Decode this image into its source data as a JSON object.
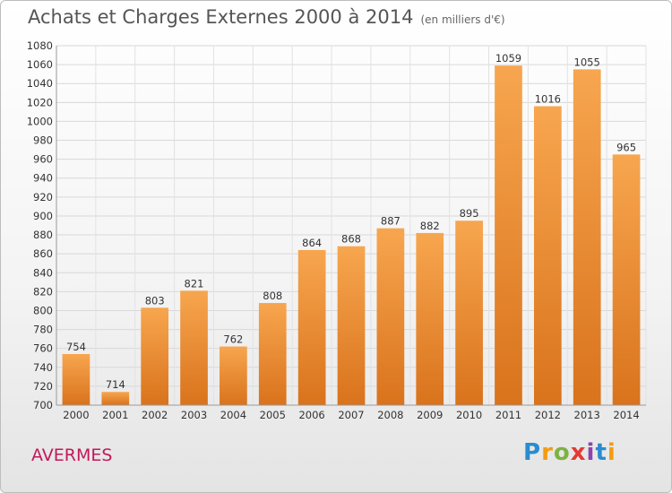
{
  "header": {
    "title": "Achats et Charges Externes 2000 à 2014",
    "unit": "(en milliers d'€)"
  },
  "footer": {
    "town": "AVERMES",
    "logo_letters": [
      "P",
      "r",
      "o",
      "x",
      "i",
      "t",
      "i"
    ],
    "logo_colors": [
      "#2a8ccf",
      "#f39c12",
      "#7cb342",
      "#e53935",
      "#8e44ad",
      "#2a8ccf",
      "#f39c12"
    ]
  },
  "chart_data": {
    "type": "bar",
    "categories": [
      "2000",
      "2001",
      "2002",
      "2003",
      "2004",
      "2005",
      "2006",
      "2007",
      "2008",
      "2009",
      "2010",
      "2011",
      "2012",
      "2013",
      "2014"
    ],
    "values": [
      754,
      714,
      803,
      821,
      762,
      808,
      864,
      868,
      887,
      882,
      895,
      1059,
      1016,
      1055,
      965
    ],
    "ylim": [
      700,
      1080
    ],
    "ytick_step": 20,
    "grid": true,
    "bar_color_light": "#f7a64f",
    "bar_color_dark": "#d9731c"
  }
}
